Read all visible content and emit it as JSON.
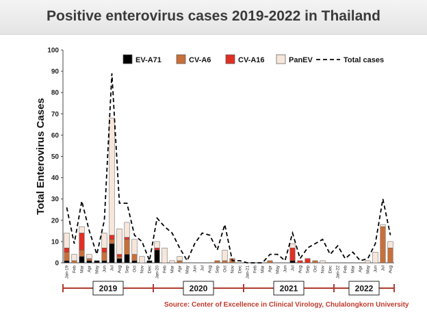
{
  "title": "Positive enterovirus cases 2019-2022 in Thailand",
  "source": "Source: Center of Excellence in Clinical Virology, Chulalongkorn University",
  "colors": {
    "EV-A71": "#000000",
    "CV-A6": "#c8703a",
    "CV-A16": "#e03025",
    "PanEV": "#f7e6da",
    "Total cases": "#000000",
    "axis": "#b03a2e"
  },
  "chart_data": {
    "type": "bar",
    "stacked": true,
    "ylabel": "Total Enterovirus Cases",
    "ylim": [
      0,
      100
    ],
    "yticks": [
      0,
      10,
      20,
      30,
      40,
      50,
      60,
      70,
      80,
      90,
      100
    ],
    "categories": [
      "Jan-19",
      "Feb",
      "Mar",
      "Apr",
      "May",
      "Jun",
      "Jul",
      "Aug",
      "Sep",
      "Oct",
      "Nov",
      "Dec",
      "Jan-20",
      "Feb",
      "Mar",
      "Apr",
      "May",
      "Jun",
      "Jul",
      "Aug",
      "Sep",
      "Oct",
      "Nov",
      "Dec",
      "Jan-21",
      "Feb",
      "Mar",
      "Apr",
      "May",
      "Jun",
      "Jul",
      "Aug",
      "Sep",
      "Oct",
      "Nov",
      "Dec",
      "Jan-22",
      "Feb",
      "Mar",
      "Apr",
      "May",
      "Jun",
      "Jul",
      "Aug"
    ],
    "series": [
      {
        "name": "EV-A71",
        "values": [
          1,
          0,
          3,
          1,
          1,
          1,
          9,
          2,
          4,
          1,
          0,
          1,
          6,
          0,
          0,
          0,
          0,
          0,
          0,
          0,
          0,
          0,
          0,
          0,
          0,
          0,
          0,
          0,
          0,
          0,
          1,
          0,
          0,
          0,
          0,
          0,
          0,
          0,
          0,
          0,
          0,
          0,
          0,
          0
        ]
      },
      {
        "name": "CV-A6",
        "values": [
          4,
          1,
          3,
          1,
          0,
          4,
          2,
          1,
          7,
          3,
          0,
          0,
          0,
          0,
          0,
          1,
          0,
          0,
          0,
          0,
          1,
          1,
          2,
          0,
          0,
          0,
          0,
          1,
          0,
          0,
          0,
          0,
          0,
          1,
          0,
          0,
          0,
          0,
          0,
          0,
          0,
          0,
          17,
          7
        ]
      },
      {
        "name": "CV-A16",
        "values": [
          2,
          0,
          8,
          0,
          0,
          2,
          2,
          1,
          1,
          0,
          0,
          0,
          1,
          0,
          0,
          0,
          0,
          0,
          0,
          0,
          0,
          0,
          0,
          0,
          0,
          0,
          0,
          0,
          0,
          0,
          6,
          1,
          2,
          0,
          0,
          0,
          0,
          0,
          0,
          0,
          0,
          0,
          0,
          0
        ]
      },
      {
        "name": "PanEV",
        "values": [
          7,
          3,
          3,
          2,
          0,
          7,
          55,
          12,
          7,
          7,
          3,
          0,
          3,
          7,
          1,
          2,
          0,
          0,
          0,
          0,
          0,
          5,
          0,
          0,
          0,
          0,
          0,
          0,
          0,
          0,
          2,
          0,
          0,
          0,
          1,
          0,
          0,
          0,
          0,
          0,
          1,
          5,
          1,
          3
        ]
      },
      {
        "name": "Total cases",
        "type": "line",
        "dashed": true,
        "values": [
          26,
          9,
          29,
          15,
          4,
          20,
          89,
          28,
          28,
          13,
          10,
          1,
          21,
          17,
          14,
          7,
          1,
          9,
          14,
          13,
          6,
          18,
          1,
          1,
          0,
          0,
          0,
          4,
          4,
          1,
          14,
          2,
          7,
          9,
          11,
          4,
          8,
          2,
          5,
          1,
          2,
          9,
          30,
          13
        ]
      }
    ],
    "year_groups": [
      "2019",
      "2020",
      "2021",
      "2022"
    ],
    "legend_position": "top-right",
    "grid": false
  }
}
